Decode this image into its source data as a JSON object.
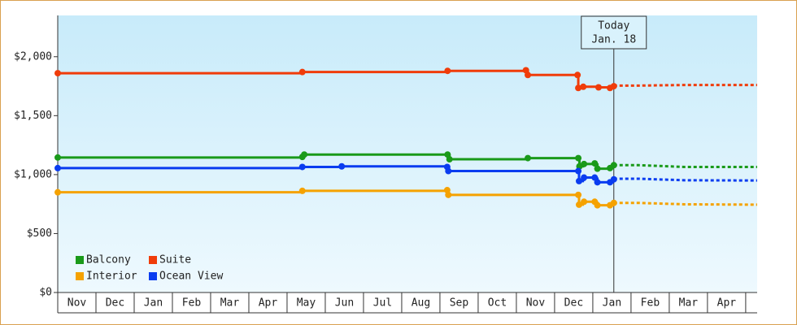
{
  "chart_data": {
    "type": "step-line",
    "categories": [
      "Nov",
      "Dec",
      "Jan",
      "Feb",
      "Mar",
      "Apr",
      "May",
      "Jun",
      "Jul",
      "Aug",
      "Sep",
      "Oct",
      "Nov",
      "Dec",
      "Jan",
      "Feb",
      "Mar",
      "Apr"
    ],
    "xlim": [
      0,
      18.3
    ],
    "ylim": [
      0,
      2350
    ],
    "yticks": [
      {
        "value": 0,
        "label": "$0"
      },
      {
        "value": 500,
        "label": "$500"
      },
      {
        "value": 1000,
        "label": "$1,000"
      },
      {
        "value": 1500,
        "label": "$1,500"
      },
      {
        "value": 2000,
        "label": "$2,000"
      }
    ],
    "today_x": 14.55,
    "today_label": [
      "Today",
      "Jan. 18"
    ],
    "legend": "bottom-left",
    "series": [
      {
        "name": "Balcony",
        "color": "#1a9a1a",
        "x": [
          0,
          6.4,
          6.45,
          10.2,
          10.25,
          12.3,
          13.62,
          13.65,
          13.77,
          14.05,
          14.12,
          14.45,
          14.55
        ],
        "values": [
          1145,
          1150,
          1170,
          1170,
          1130,
          1140,
          1140,
          1070,
          1090,
          1095,
          1050,
          1055,
          1080
        ],
        "forecast_x": [
          14.55,
          15.2,
          16.4,
          18.3
        ],
        "forecast_values": [
          1080,
          1080,
          1065,
          1065
        ]
      },
      {
        "name": "Suite",
        "color": "#f03c0a",
        "x": [
          0,
          6.4,
          10.2,
          12.25,
          12.3,
          13.6,
          13.62,
          13.75,
          14.15,
          14.45,
          14.55
        ],
        "values": [
          1860,
          1870,
          1880,
          1885,
          1845,
          1845,
          1735,
          1745,
          1740,
          1735,
          1750
        ],
        "forecast_x": [
          14.55,
          15.2,
          16.4,
          18.3
        ],
        "forecast_values": [
          1755,
          1755,
          1760,
          1760
        ]
      },
      {
        "name": "Interior",
        "color": "#f5a200",
        "x": [
          0,
          6.4,
          10.19,
          10.22,
          13.62,
          13.64,
          13.77,
          14.05,
          14.12,
          14.45,
          14.55
        ],
        "values": [
          850,
          862,
          868,
          828,
          828,
          745,
          770,
          770,
          740,
          740,
          760
        ],
        "forecast_x": [
          14.55,
          15.2,
          16.4,
          18.3
        ],
        "forecast_values": [
          760,
          760,
          748,
          745
        ]
      },
      {
        "name": "Ocean View",
        "color": "#0a3cf0",
        "x": [
          0,
          6.4,
          7.43,
          10.19,
          10.22,
          13.62,
          13.64,
          13.77,
          14.05,
          14.12,
          14.45,
          14.55
        ],
        "values": [
          1055,
          1065,
          1070,
          1065,
          1030,
          1030,
          945,
          975,
          975,
          935,
          935,
          960
        ],
        "forecast_x": [
          14.55,
          15.2,
          16.4,
          18.3
        ],
        "forecast_values": [
          965,
          965,
          952,
          950
        ]
      }
    ]
  }
}
